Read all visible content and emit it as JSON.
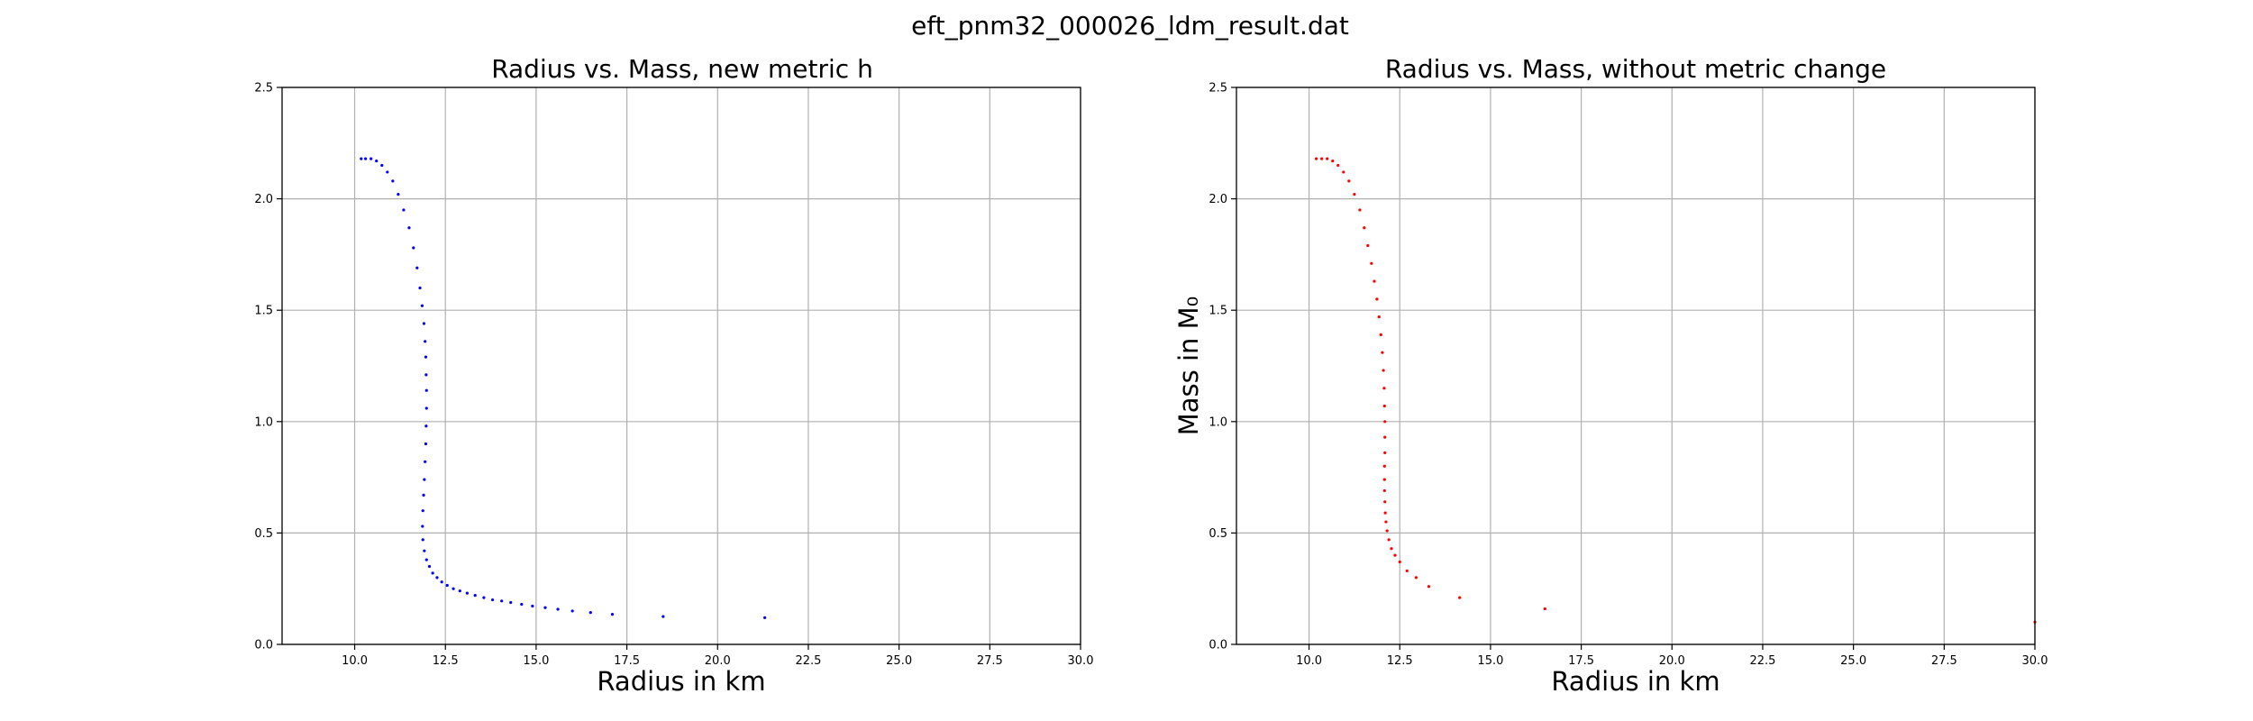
{
  "figure": {
    "suptitle": "eft_pnm32_000026_ldm_result.dat"
  },
  "chart_data": [
    {
      "type": "scatter",
      "title": "Radius vs. Mass, new metric h",
      "xlabel": "Radius in km",
      "ylabel": "",
      "xlim": [
        8.0,
        30.0
      ],
      "ylim": [
        0.0,
        2.5
      ],
      "xticks": [
        "10.0",
        "12.5",
        "15.0",
        "17.5",
        "20.0",
        "22.5",
        "25.0",
        "27.5",
        "30.0"
      ],
      "yticks": [
        "0.0",
        "0.5",
        "1.0",
        "1.5",
        "2.0",
        "2.5"
      ],
      "grid": true,
      "series": [
        {
          "color": "#0000ff",
          "x": [
            10.18,
            10.3,
            10.45,
            10.6,
            10.75,
            10.9,
            11.05,
            11.2,
            11.35,
            11.5,
            11.62,
            11.72,
            11.8,
            11.86,
            11.91,
            11.94,
            11.96,
            11.97,
            11.98,
            11.98,
            11.97,
            11.96,
            11.94,
            11.92,
            11.9,
            11.88,
            11.87,
            11.88,
            11.92,
            11.98,
            12.06,
            12.15,
            12.27,
            12.4,
            12.55,
            12.72,
            12.9,
            13.1,
            13.32,
            13.56,
            13.8,
            14.05,
            14.3,
            14.6,
            14.9,
            15.25,
            15.6,
            16.0,
            16.5,
            17.1,
            18.5,
            21.3
          ],
          "y": [
            2.18,
            2.18,
            2.18,
            2.17,
            2.15,
            2.12,
            2.08,
            2.02,
            1.95,
            1.87,
            1.78,
            1.69,
            1.6,
            1.52,
            1.44,
            1.36,
            1.29,
            1.21,
            1.14,
            1.06,
            0.98,
            0.9,
            0.82,
            0.74,
            0.67,
            0.6,
            0.53,
            0.47,
            0.42,
            0.38,
            0.35,
            0.32,
            0.3,
            0.28,
            0.265,
            0.25,
            0.24,
            0.23,
            0.22,
            0.21,
            0.2,
            0.195,
            0.188,
            0.18,
            0.172,
            0.165,
            0.158,
            0.15,
            0.143,
            0.135,
            0.125,
            0.12
          ]
        }
      ]
    },
    {
      "type": "scatter",
      "title": "Radius vs. Mass, without metric change",
      "xlabel": "Radius in km",
      "ylabel": "Mass in M₀",
      "xlim": [
        8.0,
        30.0
      ],
      "ylim": [
        0.0,
        2.5
      ],
      "xticks": [
        "10.0",
        "12.5",
        "15.0",
        "17.5",
        "20.0",
        "22.5",
        "25.0",
        "27.5",
        "30.0"
      ],
      "yticks": [
        "0.0",
        "0.5",
        "1.0",
        "1.5",
        "2.0",
        "2.5"
      ],
      "grid": true,
      "series": [
        {
          "color": "#ff0000",
          "x": [
            10.2,
            10.35,
            10.5,
            10.65,
            10.8,
            10.95,
            11.1,
            11.25,
            11.4,
            11.52,
            11.62,
            11.72,
            11.8,
            11.87,
            11.93,
            11.98,
            12.02,
            12.05,
            12.07,
            12.08,
            12.09,
            12.09,
            12.09,
            12.08,
            12.08,
            12.08,
            12.09,
            12.1,
            12.12,
            12.15,
            12.2,
            12.27,
            12.37,
            12.5,
            12.7,
            12.95,
            13.3,
            14.15,
            16.5,
            30.0
          ],
          "y": [
            2.18,
            2.18,
            2.18,
            2.17,
            2.15,
            2.12,
            2.08,
            2.02,
            1.95,
            1.87,
            1.79,
            1.71,
            1.63,
            1.55,
            1.47,
            1.39,
            1.31,
            1.23,
            1.15,
            1.07,
            1.0,
            0.93,
            0.86,
            0.8,
            0.74,
            0.69,
            0.64,
            0.59,
            0.55,
            0.51,
            0.47,
            0.43,
            0.4,
            0.37,
            0.33,
            0.3,
            0.26,
            0.21,
            0.16,
            0.1
          ]
        }
      ]
    }
  ]
}
